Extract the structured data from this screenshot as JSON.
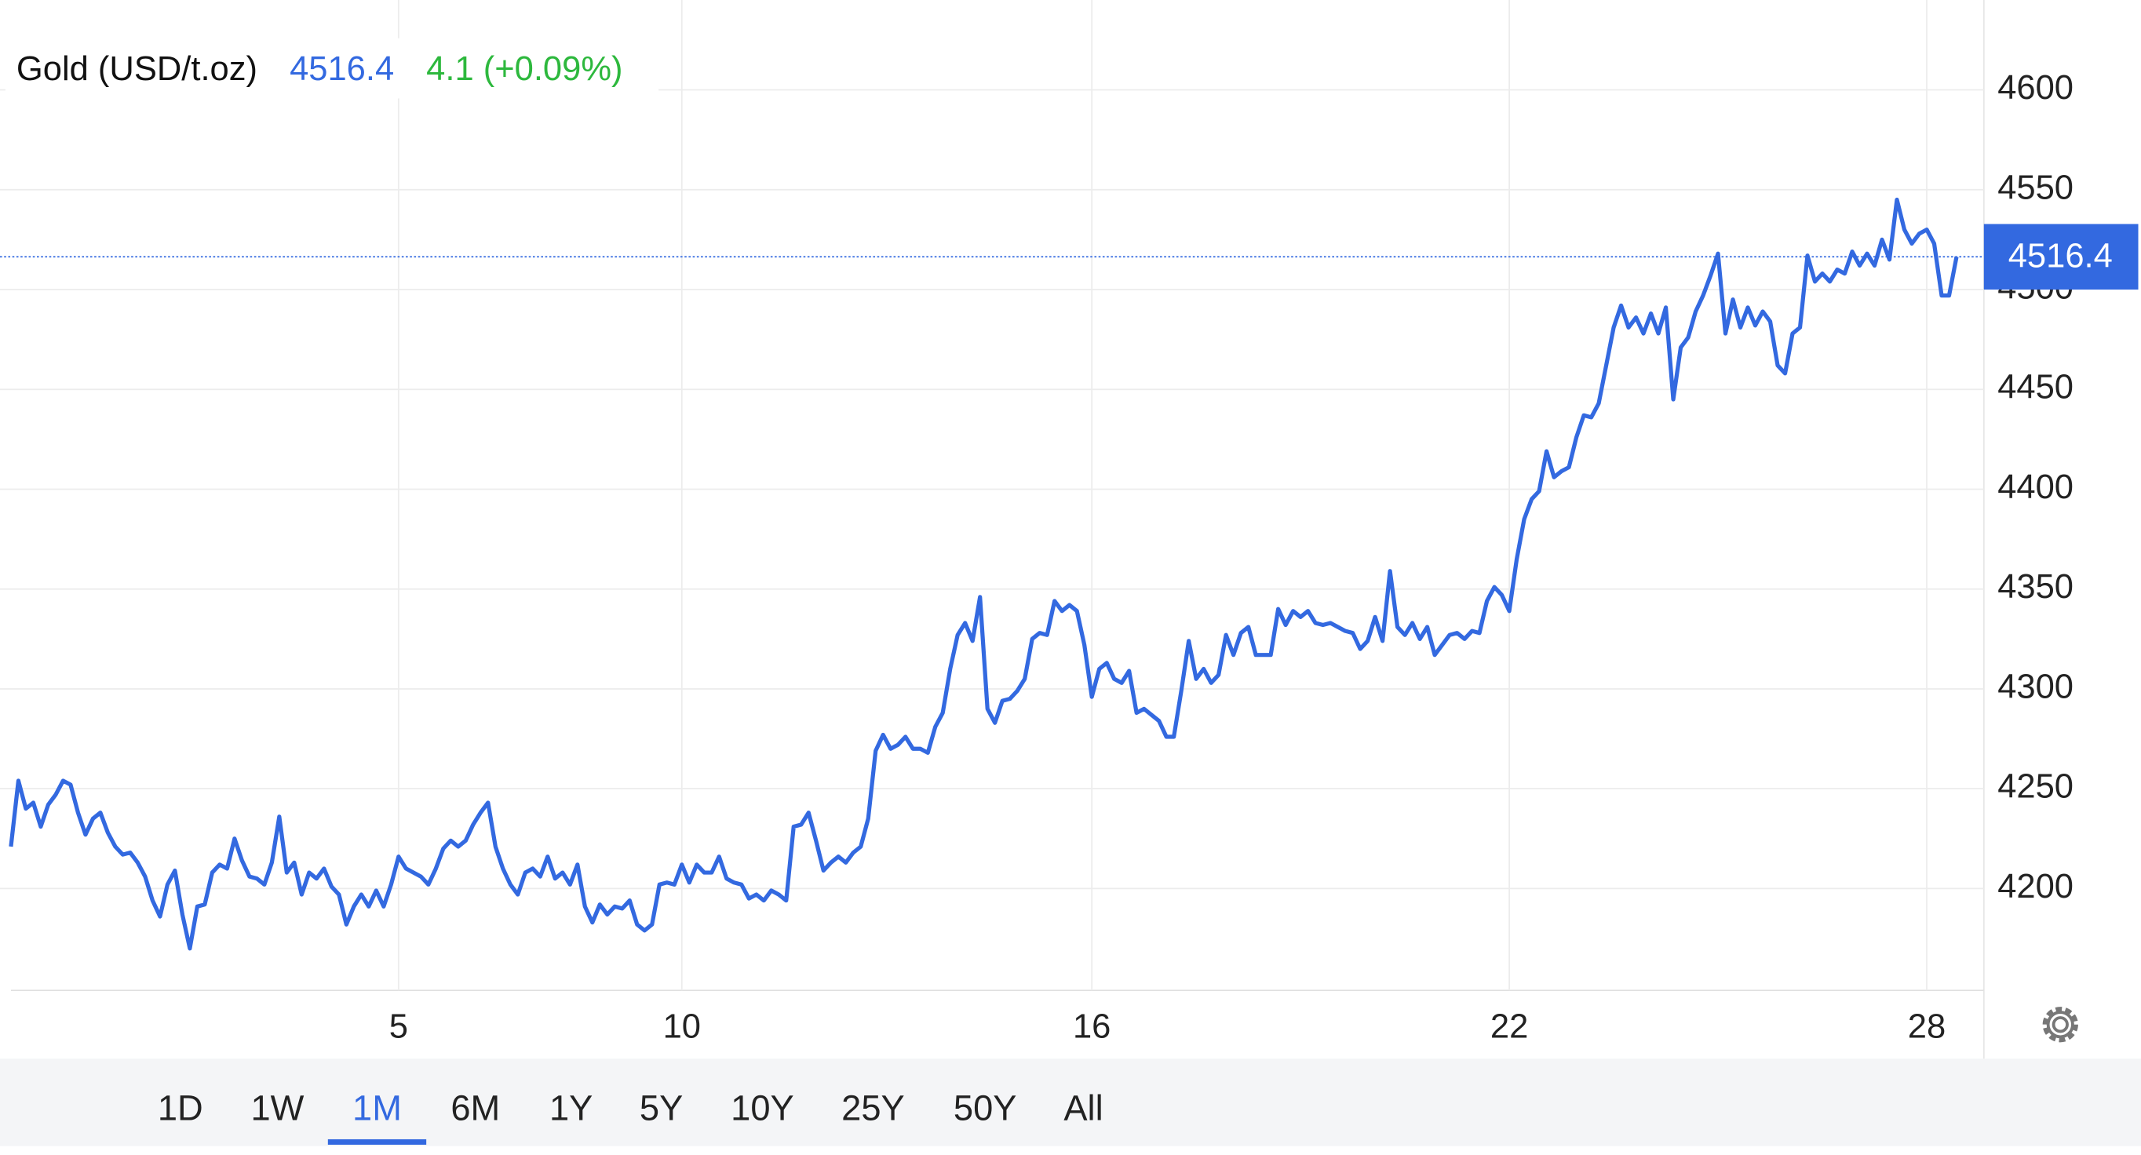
{
  "chart_data": {
    "type": "line",
    "title": "Gold (USD/t.oz)",
    "change": "4.1 (+0.09%)",
    "color": "#3369e0",
    "change_color": "#2db83d",
    "grid": true,
    "ranges": [
      "1D",
      "1W",
      "1M",
      "6M",
      "1Y",
      "5Y",
      "10Y",
      "25Y",
      "50Y",
      "All"
    ],
    "active_range": "1M",
    "ylim": [
      4149,
      4645
    ],
    "yticks": [
      4200,
      4250,
      4300,
      4350,
      4400,
      4450,
      4500,
      4550,
      4600
    ],
    "categories": [
      null,
      null,
      null,
      null,
      null,
      null,
      null,
      null,
      null,
      null,
      null,
      null,
      null,
      null,
      null,
      null,
      null,
      null,
      null,
      null,
      null,
      null,
      null,
      null,
      null,
      null,
      null,
      null,
      null,
      null,
      null,
      null,
      null,
      null,
      null,
      null,
      null,
      null,
      null,
      null,
      null,
      null,
      null,
      null,
      null,
      null,
      null,
      null,
      null,
      null,
      null,
      null,
      "5",
      null,
      null,
      null,
      null,
      null,
      null,
      null,
      null,
      null,
      null,
      null,
      null,
      null,
      null,
      null,
      null,
      null,
      null,
      null,
      null,
      null,
      null,
      null,
      null,
      null,
      null,
      null,
      null,
      null,
      null,
      null,
      null,
      null,
      null,
      null,
      null,
      null,
      "10",
      null,
      null,
      null,
      null,
      null,
      null,
      null,
      null,
      null,
      null,
      null,
      null,
      null,
      null,
      null,
      null,
      null,
      null,
      null,
      null,
      null,
      null,
      null,
      null,
      null,
      null,
      null,
      null,
      null,
      null,
      null,
      null,
      null,
      null,
      null,
      null,
      null,
      null,
      null,
      null,
      null,
      null,
      null,
      null,
      null,
      null,
      null,
      null,
      null,
      null,
      null,
      null,
      null,
      null,
      "16",
      null,
      null,
      null,
      null,
      null,
      null,
      null,
      null,
      null,
      null,
      null,
      null,
      null,
      null,
      null,
      null,
      null,
      null,
      null,
      null,
      null,
      null,
      null,
      null,
      null,
      null,
      null,
      null,
      null,
      null,
      null,
      null,
      null,
      null,
      null,
      null,
      null,
      null,
      null,
      null,
      null,
      null,
      null,
      null,
      null,
      null,
      null,
      null,
      null,
      null,
      null,
      null,
      null,
      null,
      null,
      "22",
      null,
      null,
      null,
      null,
      null,
      null,
      null,
      null,
      null,
      null,
      null,
      null,
      null,
      null,
      null,
      null,
      null,
      null,
      null,
      null,
      null,
      null,
      null,
      null,
      null,
      null,
      null,
      null,
      null,
      null,
      null,
      null,
      null,
      null,
      null,
      null,
      null,
      null,
      null,
      null,
      null,
      null,
      null,
      null,
      null,
      null,
      null,
      null,
      null,
      null,
      null,
      null,
      null,
      null,
      null,
      "28",
      null,
      null,
      null,
      null
    ],
    "values": [
      4221,
      4254,
      4240,
      4243,
      4231,
      4242,
      4247,
      4254,
      4252,
      4238,
      4227,
      4235,
      4238,
      4228,
      4221,
      4217,
      4218,
      4213,
      4206,
      4194,
      4186,
      4202,
      4209,
      4187,
      4170,
      4191,
      4192,
      4208,
      4212,
      4210,
      4225,
      4214,
      4206,
      4205,
      4202,
      4213,
      4236,
      4208,
      4213,
      4197,
      4208,
      4205,
      4210,
      4201,
      4197,
      4182,
      4191,
      4197,
      4191,
      4199,
      4191,
      4202,
      4216,
      4210,
      4208,
      4206,
      4202,
      4210,
      4220,
      4224,
      4221,
      4224,
      4232,
      4238,
      4243,
      4221,
      4210,
      4202,
      4197,
      4208,
      4210,
      4206,
      4216,
      4205,
      4208,
      4202,
      4212,
      4191,
      4183,
      4192,
      4187,
      4191,
      4190,
      4194,
      4182,
      4179,
      4182,
      4202,
      4203,
      4202,
      4212,
      4203,
      4212,
      4208,
      4208,
      4216,
      4205,
      4203,
      4202,
      4195,
      4197,
      4194,
      4199,
      4197,
      4194,
      4231,
      4232,
      4238,
      4224,
      4209,
      4213,
      4216,
      4213,
      4218,
      4221,
      4235,
      4269,
      4277,
      4270,
      4272,
      4276,
      4270,
      4270,
      4268,
      4281,
      4288,
      4310,
      4327,
      4333,
      4324,
      4346,
      4290,
      4283,
      4294,
      4295,
      4299,
      4305,
      4325,
      4328,
      4327,
      4344,
      4339,
      4342,
      4339,
      4322,
      4296,
      4310,
      4313,
      4305,
      4303,
      4309,
      4288,
      4290,
      4287,
      4284,
      4276,
      4276,
      4299,
      4324,
      4305,
      4310,
      4303,
      4307,
      4327,
      4317,
      4328,
      4331,
      4317,
      4317,
      4317,
      4340,
      4332,
      4339,
      4336,
      4339,
      4333,
      4332,
      4333,
      4331,
      4329,
      4328,
      4320,
      4324,
      4336,
      4324,
      4359,
      4331,
      4327,
      4333,
      4325,
      4331,
      4317,
      4322,
      4327,
      4328,
      4325,
      4329,
      4328,
      4344,
      4351,
      4347,
      4339,
      4365,
      4385,
      4395,
      4399,
      4419,
      4406,
      4409,
      4411,
      4426,
      4437,
      4436,
      4443,
      4462,
      4481,
      4492,
      4481,
      4486,
      4478,
      4488,
      4478,
      4491,
      4445,
      4471,
      4476,
      4489,
      4497,
      4507,
      4518,
      4478,
      4495,
      4481,
      4491,
      4482,
      4489,
      4484,
      4462,
      4458,
      4478,
      4481,
      4517,
      4504,
      4508,
      4504,
      4510,
      4508,
      4519,
      4512,
      4518,
      4512,
      4525,
      4515,
      4545,
      4530,
      4523,
      4528,
      4530,
      4523,
      4497,
      4497,
      4516.4
    ]
  }
}
